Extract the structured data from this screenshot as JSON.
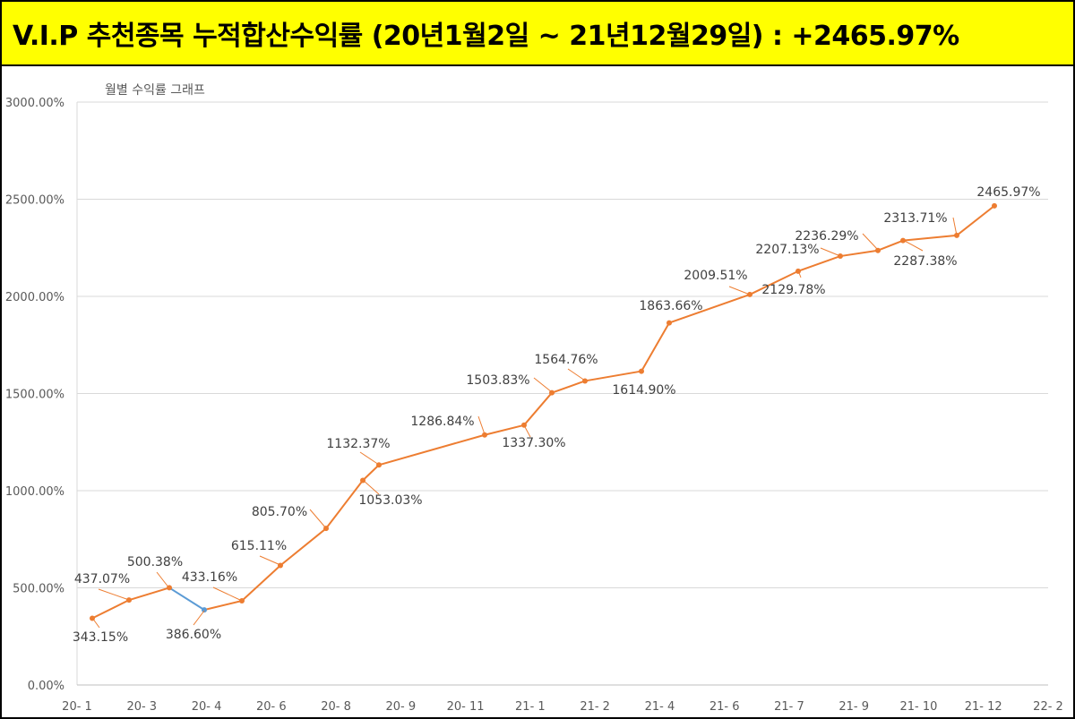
{
  "banner": {
    "title": "V.I.P 추천종목 누적합산수익률 (20년1월2일 ~ 21년12월29일) : +2465.97%"
  },
  "colors": {
    "banner_bg": "#ffff00",
    "line": "#ed7d31",
    "segment_down": "#5b9bd5",
    "grid": "#d9d9d9"
  },
  "chart_data": {
    "type": "line",
    "title": "월별 수익률 그래프",
    "xlabel": "",
    "ylabel": "",
    "x_tick_labels": [
      "20- 1",
      "20- 3",
      "20- 4",
      "20- 6",
      "20- 8",
      "20- 9",
      "20- 11",
      "21- 1",
      "21- 2",
      "21- 4",
      "21- 6",
      "21- 7",
      "21- 9",
      "21- 10",
      "21- 12",
      "22- 2"
    ],
    "y_ticks": [
      "0.00%",
      "500.00%",
      "1000.00%",
      "1500.00%",
      "2000.00%",
      "2500.00%",
      "3000.00%"
    ],
    "ylim": [
      0,
      3000
    ],
    "grid": true,
    "legend": "none",
    "series": [
      {
        "values": [
          343.15,
          437.07,
          500.38,
          386.6,
          433.16,
          615.11,
          805.7,
          1053.03,
          1132.37,
          1286.84,
          1337.3,
          1503.83,
          1564.76,
          1614.9,
          1863.66,
          2009.51,
          2129.78,
          2207.13,
          2236.29,
          2287.38,
          2313.71,
          2465.97
        ],
        "labels": [
          "343.15%",
          "437.07%",
          "500.38%",
          "386.60%",
          "433.16%",
          "615.11%",
          "805.70%",
          "1053.03%",
          "1132.37%",
          "1286.84%",
          "1337.30%",
          "1503.83%",
          "1564.76%",
          "1614.90%",
          "1863.66%",
          "2009.51%",
          "2129.78%",
          "2207.13%",
          "2236.29%",
          "2287.38%",
          "2313.71%",
          "2465.97%"
        ]
      }
    ]
  }
}
